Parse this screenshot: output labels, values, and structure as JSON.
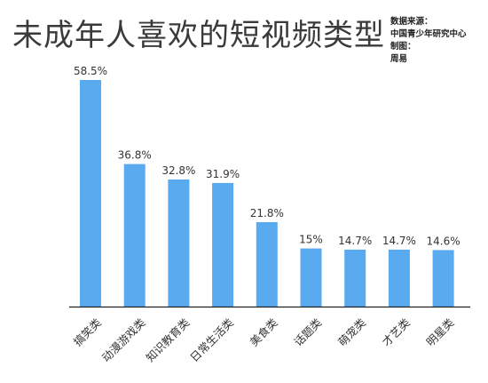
{
  "title": "未成年人喜欢的短视频类型",
  "source": {
    "source_label": "数据来源：",
    "source_value": "中国青少年研究中心",
    "made_label": "制图：",
    "made_value": "周易"
  },
  "colors": {
    "bar": "#5aaaf0",
    "text": "#333333",
    "axis": "#222222"
  },
  "chart_data": {
    "type": "bar",
    "categories": [
      "搞笑类",
      "动漫游戏类",
      "知识教育类",
      "日常生活类",
      "美食类",
      "话题类",
      "萌宠类",
      "才艺类",
      "明星类"
    ],
    "values": [
      58.5,
      36.8,
      32.8,
      31.9,
      21.8,
      15,
      14.7,
      14.7,
      14.6
    ],
    "value_labels": [
      "58.5%",
      "36.8%",
      "32.8%",
      "31.9%",
      "21.8%",
      "15%",
      "14.7%",
      "14.7%",
      "14.6%"
    ],
    "ylim": [
      0,
      58.5
    ],
    "grid": false,
    "legend": "none"
  }
}
